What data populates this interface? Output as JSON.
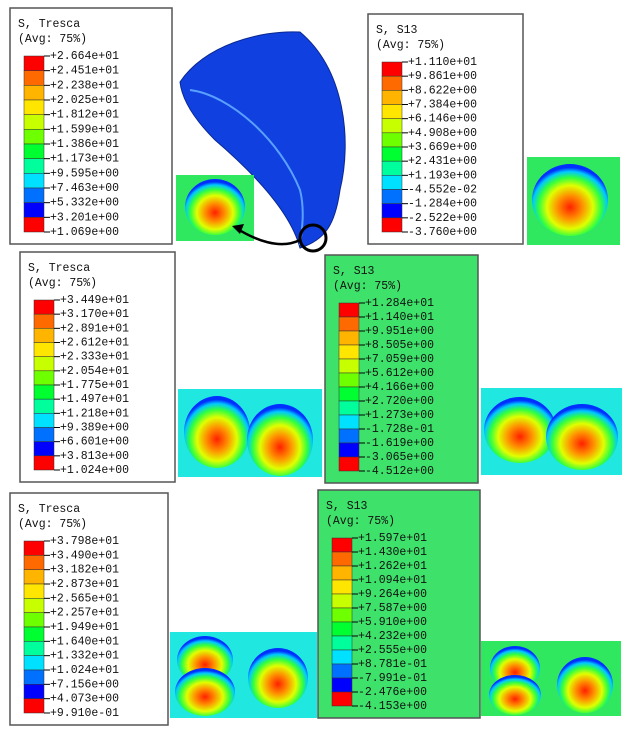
{
  "panels": [
    {
      "title": "S, Tresca",
      "avg": "(Avg: 75%)",
      "values": [
        "+2.664e+01",
        "+2.451e+01",
        "+2.238e+01",
        "+2.025e+01",
        "+1.812e+01",
        "+1.599e+01",
        "+1.386e+01",
        "+1.173e+01",
        "+9.595e+00",
        "+7.463e+00",
        "+5.332e+00",
        "+3.201e+00",
        "+1.069e+00"
      ]
    },
    {
      "title": "S, S13",
      "avg": "(Avg: 75%)",
      "values": [
        "+1.110e+01",
        "+9.861e+00",
        "+8.622e+00",
        "+7.384e+00",
        "+6.146e+00",
        "+4.908e+00",
        "+3.669e+00",
        "+2.431e+00",
        "+1.193e+00",
        "-4.552e-02",
        "-1.284e+00",
        "-2.522e+00",
        "-3.760e+00"
      ]
    },
    {
      "title": "S, Tresca",
      "avg": "(Avg: 75%)",
      "values": [
        "+3.449e+01",
        "+3.170e+01",
        "+2.891e+01",
        "+2.612e+01",
        "+2.333e+01",
        "+2.054e+01",
        "+1.775e+01",
        "+1.497e+01",
        "+1.218e+01",
        "+9.389e+00",
        "+6.601e+00",
        "+3.813e+00",
        "+1.024e+00"
      ]
    },
    {
      "title": "S, S13",
      "avg": "(Avg: 75%)",
      "values": [
        "+1.284e+01",
        "+1.140e+01",
        "+9.951e+00",
        "+8.505e+00",
        "+7.059e+00",
        "+5.612e+00",
        "+4.166e+00",
        "+2.720e+00",
        "+1.273e+00",
        "-1.728e-01",
        "-1.619e+00",
        "-3.065e+00",
        "-4.512e+00"
      ]
    },
    {
      "title": "S, Tresca",
      "avg": "(Avg: 75%)",
      "values": [
        "+3.798e+01",
        "+3.490e+01",
        "+3.182e+01",
        "+2.873e+01",
        "+2.565e+01",
        "+2.257e+01",
        "+1.949e+01",
        "+1.640e+01",
        "+1.332e+01",
        "+1.024e+01",
        "+7.156e+00",
        "+4.073e+00",
        "+9.910e-01"
      ]
    },
    {
      "title": "S, S13",
      "avg": "(Avg: 75%)",
      "values": [
        "+1.597e+01",
        "+1.430e+01",
        "+1.262e+01",
        "+1.094e+01",
        "+9.264e+00",
        "+7.587e+00",
        "+5.910e+00",
        "+4.232e+00",
        "+2.555e+00",
        "+8.781e-01",
        "-7.991e-01",
        "-2.476e+00",
        "-4.153e+00"
      ]
    }
  ]
}
